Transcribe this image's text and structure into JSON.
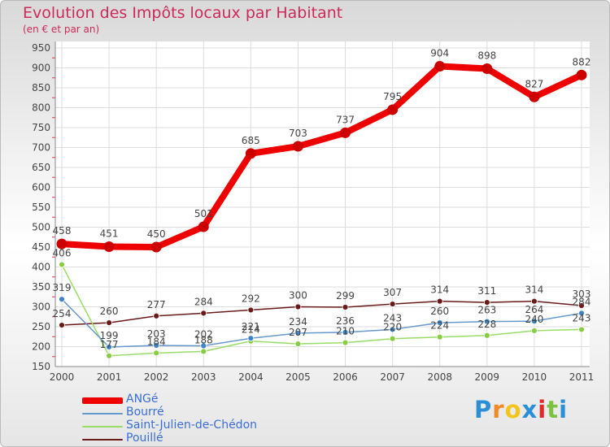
{
  "chart_data": {
    "type": "line",
    "title": "Evolution des Impôts locaux par Habitant",
    "subtitle": "(en € et par an)",
    "xlabel": "",
    "ylabel": "",
    "ylim": [
      150,
      950
    ],
    "yticks": [
      150,
      200,
      250,
      300,
      350,
      400,
      450,
      500,
      550,
      600,
      650,
      700,
      750,
      800,
      850,
      900,
      950
    ],
    "categories": [
      "2000",
      "2001",
      "2002",
      "2003",
      "2004",
      "2005",
      "2006",
      "2007",
      "2008",
      "2009",
      "2010",
      "2011"
    ],
    "grid": true,
    "legend_position": "bottom-left",
    "series": [
      {
        "name": "ANGé",
        "color": "#ee0000",
        "marker_color": "#cc0000",
        "values": [
          458,
          451,
          450,
          501,
          685,
          703,
          737,
          795,
          904,
          898,
          827,
          882
        ],
        "labels": [
          "458",
          "451",
          "450",
          "501",
          "685",
          "703",
          "737",
          "795",
          "904",
          "898",
          "827",
          "882"
        ]
      },
      {
        "name": "Bourré",
        "color": "#6699cc",
        "marker_color": "#3d85c6",
        "values": [
          319,
          199,
          203,
          202,
          221,
          234,
          236,
          243,
          260,
          263,
          264,
          284
        ],
        "labels": [
          "319",
          "199",
          "203",
          "202",
          "221",
          "234",
          "236",
          "243",
          "260",
          "263",
          "264",
          "284"
        ]
      },
      {
        "name": "Saint-Julien-de-Chédon",
        "color": "#99dd66",
        "marker_color": "#88cc44",
        "values": [
          406,
          177,
          184,
          188,
          214,
          207,
          210,
          220,
          224,
          228,
          240,
          243
        ],
        "labels": [
          "406",
          "177",
          "184",
          "188",
          "214",
          "207",
          "210",
          "220",
          "224",
          "228",
          "240",
          "243"
        ]
      },
      {
        "name": "Pouillé",
        "color": "#6b1a1a",
        "marker_color": "#6b1a1a",
        "values": [
          254,
          260,
          277,
          284,
          292,
          300,
          299,
          307,
          314,
          311,
          314,
          303
        ],
        "labels": [
          "254",
          "260",
          "277",
          "284",
          "292",
          "300",
          "299",
          "307",
          "314",
          "311",
          "314",
          "303"
        ]
      }
    ]
  },
  "logo": {
    "text": "Proxiti",
    "letters": [
      "P",
      "r",
      "o",
      "x",
      "i",
      "t",
      "i"
    ],
    "colors": [
      "#2b8fd6",
      "#f08a24",
      "#f3c41a",
      "#2b8fd6",
      "#e02a2a",
      "#7cc242",
      "#2b8fd6"
    ]
  }
}
